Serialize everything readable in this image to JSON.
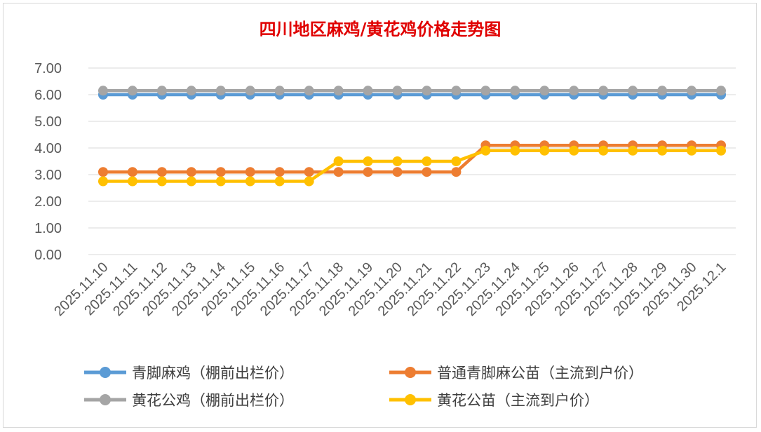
{
  "chart_data": {
    "type": "line",
    "title": "四川地区麻鸡/黄花鸡价格走势图",
    "categories": [
      "2025.11.10",
      "2025.11.11",
      "2025.11.12",
      "2025.11.13",
      "2025.11.14",
      "2025.11.15",
      "2025.11.16",
      "2025.11.17",
      "2025.11.18",
      "2025.11.19",
      "2025.11.20",
      "2025.11.21",
      "2025.11.22",
      "2025.11.23",
      "2025.11.24",
      "2025.11.25",
      "2025.11.26",
      "2025.11.27",
      "2025.11.28",
      "2025.11.29",
      "2025.11.30",
      "2025.12.1"
    ],
    "ylim": [
      0,
      7
    ],
    "yticks": [
      "0.00",
      "1.00",
      "2.00",
      "3.00",
      "4.00",
      "5.00",
      "6.00",
      "7.00"
    ],
    "grid": true,
    "legend_position": "bottom",
    "series": [
      {
        "name": "青脚麻鸡（棚前出栏价）",
        "color": "#5b9bd5",
        "values": [
          6.0,
          6.0,
          6.0,
          6.0,
          6.0,
          6.0,
          6.0,
          6.0,
          6.0,
          6.0,
          6.0,
          6.0,
          6.0,
          6.0,
          6.0,
          6.0,
          6.0,
          6.0,
          6.0,
          6.0,
          6.0,
          6.0
        ]
      },
      {
        "name": "普通青脚麻公苗（主流到户价）",
        "color": "#ed7d31",
        "values": [
          3.1,
          3.1,
          3.1,
          3.1,
          3.1,
          3.1,
          3.1,
          3.1,
          3.1,
          3.1,
          3.1,
          3.1,
          3.1,
          4.1,
          4.1,
          4.1,
          4.1,
          4.1,
          4.1,
          4.1,
          4.1,
          4.1
        ]
      },
      {
        "name": "黄花公鸡（棚前出栏价）",
        "color": "#a5a5a5",
        "values": [
          6.15,
          6.15,
          6.15,
          6.15,
          6.15,
          6.15,
          6.15,
          6.15,
          6.15,
          6.15,
          6.15,
          6.15,
          6.15,
          6.15,
          6.15,
          6.15,
          6.15,
          6.15,
          6.15,
          6.15,
          6.15,
          6.15
        ]
      },
      {
        "name": "黄花公苗（主流到户价）",
        "color": "#ffc000",
        "values": [
          2.75,
          2.75,
          2.75,
          2.75,
          2.75,
          2.75,
          2.75,
          2.75,
          3.5,
          3.5,
          3.5,
          3.5,
          3.5,
          3.9,
          3.9,
          3.9,
          3.9,
          3.9,
          3.9,
          3.9,
          3.9,
          3.9
        ]
      }
    ]
  }
}
